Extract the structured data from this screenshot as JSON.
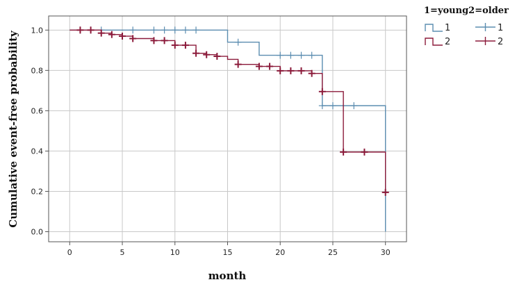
{
  "chart_data": {
    "type": "line",
    "subtype": "kaplan-meier",
    "xlabel": "month",
    "ylabel": "Cumulative event-free probability",
    "xlim": [
      -2,
      32
    ],
    "ylim": [
      -0.05,
      1.07
    ],
    "xticks": [
      "0",
      "5",
      "10",
      "15",
      "20",
      "25",
      "30"
    ],
    "yticks": [
      "0.0",
      "0.2",
      "0.4",
      "0.6",
      "0.8",
      "1.0"
    ],
    "grid": true,
    "legend": {
      "title": "1=young2=older",
      "position": "top-right",
      "entries": [
        {
          "line_label": "1",
          "censor_label": "1",
          "series": 0
        },
        {
          "line_label": "2",
          "censor_label": "2",
          "series": 1
        }
      ]
    },
    "series": [
      {
        "name": "1",
        "color": "#5b8db0",
        "steps": [
          [
            0,
            1.0
          ],
          [
            15,
            0.94
          ],
          [
            18,
            0.875
          ],
          [
            24,
            0.625
          ],
          [
            30,
            0.0
          ]
        ],
        "censored": [
          [
            1,
            1.0
          ],
          [
            2,
            1.0
          ],
          [
            3,
            1.0
          ],
          [
            6,
            1.0
          ],
          [
            8,
            1.0
          ],
          [
            9,
            1.0
          ],
          [
            10,
            1.0
          ],
          [
            11,
            1.0
          ],
          [
            12,
            1.0
          ],
          [
            16,
            0.94
          ],
          [
            20,
            0.875
          ],
          [
            21,
            0.875
          ],
          [
            22,
            0.875
          ],
          [
            23,
            0.875
          ],
          [
            24,
            0.625
          ],
          [
            25,
            0.625
          ],
          [
            27,
            0.625
          ]
        ]
      },
      {
        "name": "2",
        "color": "#8b1a3a",
        "steps": [
          [
            0,
            1.0
          ],
          [
            3,
            0.985
          ],
          [
            4,
            0.978
          ],
          [
            5,
            0.97
          ],
          [
            6,
            0.958
          ],
          [
            8,
            0.948
          ],
          [
            10,
            0.925
          ],
          [
            12,
            0.885
          ],
          [
            13,
            0.878
          ],
          [
            14,
            0.87
          ],
          [
            15,
            0.855
          ],
          [
            16,
            0.83
          ],
          [
            18,
            0.82
          ],
          [
            20,
            0.798
          ],
          [
            23,
            0.785
          ],
          [
            24,
            0.695
          ],
          [
            26,
            0.395
          ],
          [
            30,
            0.195
          ]
        ],
        "censored": [
          [
            1,
            1.0
          ],
          [
            2,
            1.0
          ],
          [
            3,
            0.985
          ],
          [
            4,
            0.978
          ],
          [
            5,
            0.97
          ],
          [
            6,
            0.958
          ],
          [
            8,
            0.948
          ],
          [
            9,
            0.948
          ],
          [
            10,
            0.925
          ],
          [
            11,
            0.925
          ],
          [
            12,
            0.885
          ],
          [
            13,
            0.878
          ],
          [
            14,
            0.87
          ],
          [
            16,
            0.83
          ],
          [
            18,
            0.82
          ],
          [
            19,
            0.82
          ],
          [
            20,
            0.798
          ],
          [
            21,
            0.798
          ],
          [
            22,
            0.798
          ],
          [
            23,
            0.785
          ],
          [
            24,
            0.695
          ],
          [
            26,
            0.395
          ],
          [
            28,
            0.395
          ],
          [
            30,
            0.195
          ]
        ]
      }
    ]
  }
}
